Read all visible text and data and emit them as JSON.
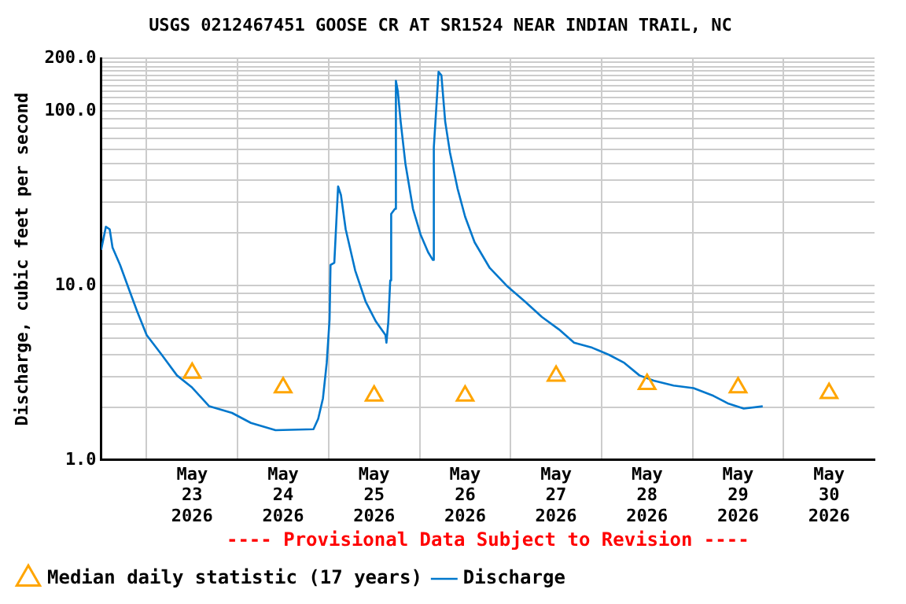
{
  "chart_data": {
    "type": "line",
    "title": "USGS 0212467451 GOOSE CR AT SR1524 NEAR INDIAN TRAIL, NC",
    "ylabel": "Discharge, cubic feet per second",
    "annotations": [
      "---- Provisional Data Subject to Revision ----"
    ],
    "log": "y",
    "grid": true,
    "legend": "bottom",
    "xlim": [
      "2026-05-22T12:00",
      "2026-05-31T00:00"
    ],
    "xticks": [
      {
        "value": "2026-05-23T00:00",
        "label": null
      },
      {
        "value": "2026-05-24T00:00",
        "label": null
      },
      {
        "value": "2026-05-25T00:00",
        "label": null
      },
      {
        "value": "2026-05-26T00:00",
        "label": null
      },
      {
        "value": "2026-05-27T00:00",
        "label": null
      },
      {
        "value": "2026-05-28T00:00",
        "label": null
      },
      {
        "value": "2026-05-29T00:00",
        "label": null
      },
      {
        "value": "2026-05-30T00:00",
        "label": null
      },
      {
        "value": "2026-05-23T12:00",
        "label": "May 23 2026"
      },
      {
        "value": "2026-05-24T12:00",
        "label": "May 24 2026"
      },
      {
        "value": "2026-05-25T12:00",
        "label": "May 25 2026"
      },
      {
        "value": "2026-05-26T12:00",
        "label": "May 26 2026"
      },
      {
        "value": "2026-05-27T12:00",
        "label": "May 27 2026"
      },
      {
        "value": "2026-05-28T12:00",
        "label": "May 28 2026"
      },
      {
        "value": "2026-05-29T12:00",
        "label": "May 29 2026"
      },
      {
        "value": "2026-05-30T12:00",
        "label": "May 30 2026"
      }
    ],
    "ylim": [
      1,
      200
    ],
    "yticks": [
      {
        "value": 1,
        "label": "1.0"
      },
      {
        "value": 2,
        "label": null
      },
      {
        "value": 3,
        "label": null
      },
      {
        "value": 4,
        "label": null
      },
      {
        "value": 5,
        "label": null
      },
      {
        "value": 6,
        "label": null
      },
      {
        "value": 7,
        "label": null
      },
      {
        "value": 8,
        "label": null
      },
      {
        "value": 9,
        "label": null
      },
      {
        "value": 10,
        "label": "10.0"
      },
      {
        "value": 20,
        "label": null
      },
      {
        "value": 30,
        "label": null
      },
      {
        "value": 40,
        "label": null
      },
      {
        "value": 50,
        "label": null
      },
      {
        "value": 60,
        "label": null
      },
      {
        "value": 70,
        "label": null
      },
      {
        "value": 80,
        "label": null
      },
      {
        "value": 90,
        "label": null
      },
      {
        "value": 100,
        "label": "100.0"
      },
      {
        "value": 110,
        "label": null
      },
      {
        "value": 120,
        "label": null
      },
      {
        "value": 130,
        "label": null
      },
      {
        "value": 140,
        "label": null
      },
      {
        "value": 150,
        "label": null
      },
      {
        "value": 160,
        "label": null
      },
      {
        "value": 170,
        "label": null
      },
      {
        "value": 180,
        "label": null
      },
      {
        "value": 190,
        "label": null
      },
      {
        "value": 200,
        "label": "200.0"
      }
    ],
    "series": [
      {
        "name": "Median daily statistic (17 years)",
        "type": "scatter",
        "marker": "triangle",
        "color": "#ffa500",
        "x": [
          "2026-05-23T12:00",
          "2026-05-24T12:00",
          "2026-05-25T12:00",
          "2026-05-26T12:00",
          "2026-05-27T12:00",
          "2026-05-28T12:00",
          "2026-05-29T12:00",
          "2026-05-30T12:00"
        ],
        "values": [
          3.15,
          2.6,
          2.33,
          2.33,
          3.03,
          2.72,
          2.6,
          2.41
        ]
      },
      {
        "name": "Discharge",
        "type": "line",
        "marker": "none",
        "color": "#0077cc",
        "x": [
          "2026-05-22T12:00",
          "2026-05-22T13:15",
          "2026-05-22T14:15",
          "2026-05-22T15:00",
          "2026-05-22T17:00",
          "2026-05-22T19:30",
          "2026-05-22T21:30",
          "2026-05-23T00:00",
          "2026-05-23T04:00",
          "2026-05-23T08:00",
          "2026-05-23T12:00",
          "2026-05-23T16:30",
          "2026-05-23T22:30",
          "2026-05-24T03:30",
          "2026-05-24T10:00",
          "2026-05-24T20:00",
          "2026-05-24T21:15",
          "2026-05-24T22:30",
          "2026-05-24T23:30",
          "2026-05-25T00:15",
          "2026-05-25T00:30",
          "2026-05-25T01:30",
          "2026-05-25T02:30",
          "2026-05-25T03:15",
          "2026-05-25T04:30",
          "2026-05-25T07:00",
          "2026-05-25T09:45",
          "2026-05-25T12:30",
          "2026-05-25T15:00",
          "2026-05-25T15:15",
          "2026-05-25T15:45",
          "2026-05-25T16:15",
          "2026-05-25T16:30",
          "2026-05-25T17:30",
          "2026-05-25T17:45",
          "2026-05-25T18:15",
          "2026-05-25T19:00",
          "2026-05-25T20:15",
          "2026-05-25T22:15",
          "2026-05-26T00:15",
          "2026-05-26T02:15",
          "2026-05-26T03:30",
          "2026-05-26T03:45",
          "2026-05-26T05:00",
          "2026-05-26T05:45",
          "2026-05-26T06:45",
          "2026-05-26T08:00",
          "2026-05-26T10:00",
          "2026-05-26T12:00",
          "2026-05-26T14:30",
          "2026-05-26T18:30",
          "2026-05-26T23:00",
          "2026-05-27T03:45",
          "2026-05-27T08:15",
          "2026-05-27T12:45",
          "2026-05-27T16:45",
          "2026-05-27T21:30",
          "2026-05-28T02:00",
          "2026-05-28T06:00",
          "2026-05-28T10:00",
          "2026-05-28T13:45",
          "2026-05-28T19:00",
          "2026-05-29T00:15",
          "2026-05-29T05:30",
          "2026-05-29T09:30",
          "2026-05-29T13:30",
          "2026-05-29T18:30"
        ],
        "values": [
          16,
          21.7,
          21,
          16.5,
          13.1,
          9.3,
          7.1,
          5.2,
          4,
          3.05,
          2.6,
          2.03,
          1.86,
          1.63,
          1.48,
          1.5,
          1.72,
          2.25,
          3.6,
          6.4,
          13.1,
          13.5,
          37,
          33,
          21,
          12.2,
          8.1,
          6.2,
          5.2,
          4.7,
          6.2,
          10.7,
          25.7,
          27.5,
          149,
          130,
          87,
          50,
          27.5,
          19.6,
          15.5,
          14,
          62,
          168,
          160,
          87,
          58,
          36,
          24.8,
          17.7,
          12.6,
          9.95,
          8.1,
          6.6,
          5.6,
          4.7,
          4.4,
          4,
          3.6,
          3.05,
          2.85,
          2.67,
          2.58,
          2.33,
          2.1,
          1.97,
          2.03
        ]
      }
    ]
  }
}
